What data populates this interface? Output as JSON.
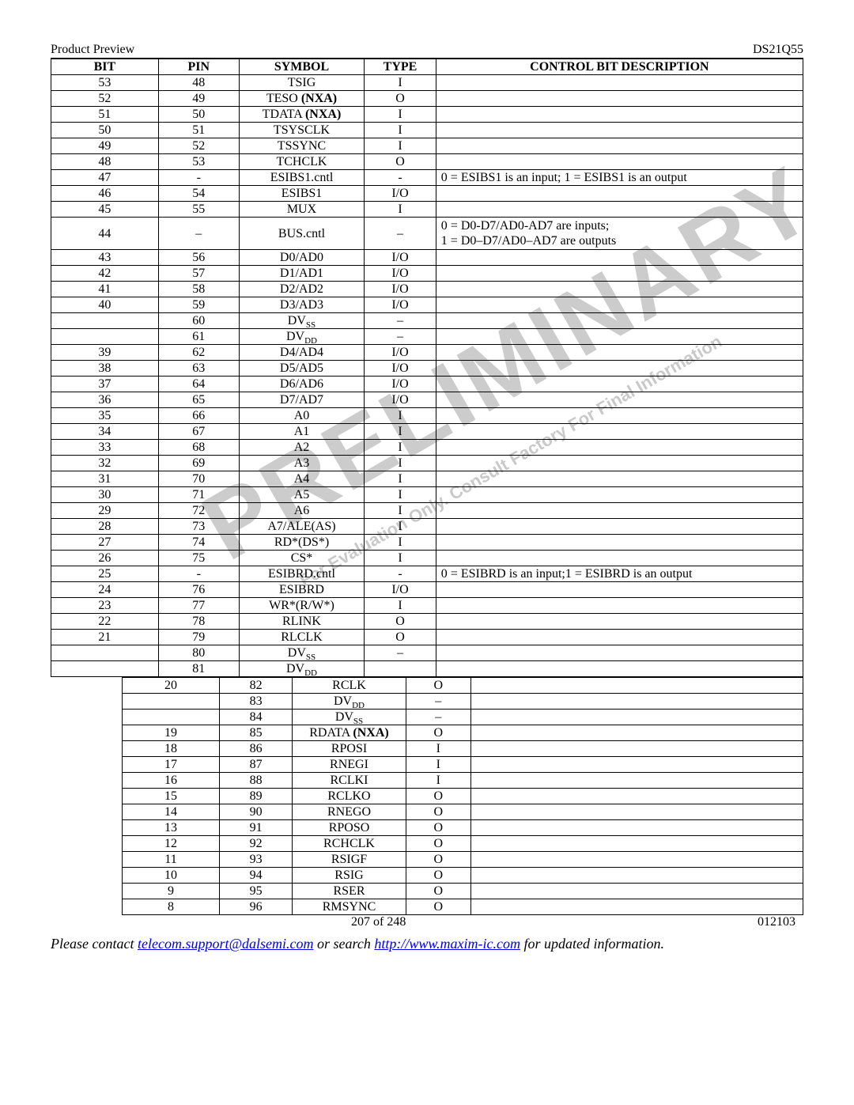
{
  "header": {
    "left": "Product Preview",
    "right": "DS21Q55"
  },
  "columns1": [
    "BIT",
    "PIN",
    "SYMBOL",
    "TYPE",
    "CONTROL BIT DESCRIPTION"
  ],
  "col_widths1": [
    120,
    90,
    140,
    80,
    410
  ],
  "rows1": [
    {
      "bit": "53",
      "pin": "48",
      "sym": "TSIG",
      "type": "I",
      "desc": ""
    },
    {
      "bit": "52",
      "pin": "49",
      "sym": "TESO <b>(NXA)</b>",
      "type": "O",
      "desc": ""
    },
    {
      "bit": "51",
      "pin": "50",
      "sym": "TDATA <b>(NXA)</b>",
      "type": "I",
      "desc": ""
    },
    {
      "bit": "50",
      "pin": "51",
      "sym": "TSYSCLK",
      "type": "I",
      "desc": ""
    },
    {
      "bit": "49",
      "pin": "52",
      "sym": "TSSYNC",
      "type": "I",
      "desc": ""
    },
    {
      "bit": "48",
      "pin": "53",
      "sym": "TCHCLK",
      "type": "O",
      "desc": ""
    },
    {
      "bit": "47",
      "pin": "-",
      "sym": "ESIBS1.cntl",
      "type": "-",
      "desc": "0 = ESIBS1 is an input;  1 = ESIBS1 is an output"
    },
    {
      "bit": "46",
      "pin": "54",
      "sym": "ESIBS1",
      "type": "I/O",
      "desc": ""
    },
    {
      "bit": "45",
      "pin": "55",
      "sym": "MUX",
      "type": "I",
      "desc": ""
    },
    {
      "bit": "44",
      "pin": "–",
      "sym": "BUS.cntl",
      "type": "–",
      "desc": "0 = D0-D7/AD0-AD7 are inputs;<br>1 = D0–D7/AD0–AD7 are outputs",
      "multi": true
    },
    {
      "bit": "43",
      "pin": "56",
      "sym": "D0/AD0",
      "type": "I/O",
      "desc": ""
    },
    {
      "bit": "42",
      "pin": "57",
      "sym": "D1/AD1",
      "type": "I/O",
      "desc": ""
    },
    {
      "bit": "41",
      "pin": "58",
      "sym": "D2/AD2",
      "type": "I/O",
      "desc": ""
    },
    {
      "bit": "40",
      "pin": "59",
      "sym": "D3/AD3",
      "type": "I/O",
      "desc": ""
    },
    {
      "bit": "",
      "pin": "60",
      "sym": "DV<sub>SS</sub>",
      "type": "–",
      "desc": ""
    },
    {
      "bit": "",
      "pin": "61",
      "sym": "DV<sub>DD</sub>",
      "type": "–",
      "desc": ""
    },
    {
      "bit": "39",
      "pin": "62",
      "sym": "D4/AD4",
      "type": "I/O",
      "desc": ""
    },
    {
      "bit": "38",
      "pin": "63",
      "sym": "D5/AD5",
      "type": "I/O",
      "desc": ""
    },
    {
      "bit": "37",
      "pin": "64",
      "sym": "D6/AD6",
      "type": "I/O",
      "desc": ""
    },
    {
      "bit": "36",
      "pin": "65",
      "sym": "D7/AD7",
      "type": "I/O",
      "desc": ""
    },
    {
      "bit": "35",
      "pin": "66",
      "sym": "A0",
      "type": "I",
      "desc": ""
    },
    {
      "bit": "34",
      "pin": "67",
      "sym": "A1",
      "type": "I",
      "desc": ""
    },
    {
      "bit": "33",
      "pin": "68",
      "sym": "A2",
      "type": "I",
      "desc": ""
    },
    {
      "bit": "32",
      "pin": "69",
      "sym": "A3",
      "type": "I",
      "desc": ""
    },
    {
      "bit": "31",
      "pin": "70",
      "sym": "A4",
      "type": "I",
      "desc": ""
    },
    {
      "bit": "30",
      "pin": "71",
      "sym": "A5",
      "type": "I",
      "desc": ""
    },
    {
      "bit": "29",
      "pin": "72",
      "sym": "A6",
      "type": "I",
      "desc": ""
    },
    {
      "bit": "28",
      "pin": "73",
      "sym": "A7/ALE(AS)",
      "type": "I",
      "desc": ""
    },
    {
      "bit": "27",
      "pin": "74",
      "sym": "RD*(DS*)",
      "type": "I",
      "desc": ""
    },
    {
      "bit": "26",
      "pin": "75",
      "sym": "CS*",
      "type": "I",
      "desc": ""
    },
    {
      "bit": "25",
      "pin": "-",
      "sym": "ESIBRD.cntl",
      "type": "-",
      "desc": "0 = ESIBRD is an input;1 = ESIBRD is an output"
    },
    {
      "bit": "24",
      "pin": "76",
      "sym": "ESIBRD",
      "type": "I/O",
      "desc": ""
    },
    {
      "bit": "23",
      "pin": "77",
      "sym": "WR*(R/W*)",
      "type": "I",
      "desc": ""
    },
    {
      "bit": "22",
      "pin": "78",
      "sym": "RLINK",
      "type": "O",
      "desc": ""
    },
    {
      "bit": "21",
      "pin": "79",
      "sym": "RLCLK",
      "type": "O",
      "desc": ""
    },
    {
      "bit": "",
      "pin": "80",
      "sym": "DV<sub>SS</sub>",
      "type": "–",
      "desc": ""
    },
    {
      "bit": "",
      "pin": "81",
      "sym": "DV<sub>DD</sub>",
      "type": "",
      "desc": ""
    }
  ],
  "col_widths2": [
    120,
    90,
    140,
    80,
    410
  ],
  "rows2": [
    {
      "bit": "20",
      "pin": "82",
      "sym": "RCLK",
      "type": "O",
      "desc": ""
    },
    {
      "bit": "",
      "pin": "83",
      "sym": "DV<sub>DD</sub>",
      "type": "–",
      "desc": ""
    },
    {
      "bit": "",
      "pin": "84",
      "sym": "DV<sub>SS</sub>",
      "type": "–",
      "desc": ""
    },
    {
      "bit": "19",
      "pin": "85",
      "sym": "RDATA <b>(NXA)</b>",
      "type": "O",
      "desc": ""
    },
    {
      "bit": "18",
      "pin": "86",
      "sym": "RPOSI",
      "type": "I",
      "desc": ""
    },
    {
      "bit": "17",
      "pin": "87",
      "sym": "RNEGI",
      "type": "I",
      "desc": ""
    },
    {
      "bit": "16",
      "pin": "88",
      "sym": "RCLKI",
      "type": "I",
      "desc": ""
    },
    {
      "bit": "15",
      "pin": "89",
      "sym": "RCLKO",
      "type": "O",
      "desc": ""
    },
    {
      "bit": "14",
      "pin": "90",
      "sym": "RNEGO",
      "type": "O",
      "desc": ""
    },
    {
      "bit": "13",
      "pin": "91",
      "sym": "RPOSO",
      "type": "O",
      "desc": ""
    },
    {
      "bit": "12",
      "pin": "92",
      "sym": "RCHCLK",
      "type": "O",
      "desc": ""
    },
    {
      "bit": "11",
      "pin": "93",
      "sym": "RSIGF",
      "type": "O",
      "desc": ""
    },
    {
      "bit": "10",
      "pin": "94",
      "sym": "RSIG",
      "type": "O",
      "desc": ""
    },
    {
      "bit": "9",
      "pin": "95",
      "sym": "RSER",
      "type": "O",
      "desc": ""
    },
    {
      "bit": "8",
      "pin": "96",
      "sym": "RMSYNC",
      "type": "O",
      "desc": ""
    }
  ],
  "footer": {
    "page_num": "207 of 248",
    "doc_rev": "012103",
    "contact_prefix": "Please contact ",
    "email_text": "telecom.support@dalsemi.com",
    "email_href": "mailto:telecom.support@dalsemi.com",
    "contact_mid": " or search ",
    "url_text": "http://www.maxim-ic.com",
    "url_href": "http://www.maxim-ic.com",
    "contact_suffix": " for updated information."
  },
  "watermark": {
    "big": "PRELIMINARY",
    "small": "For Evaluation Only. Consult Factory For Final Information"
  }
}
